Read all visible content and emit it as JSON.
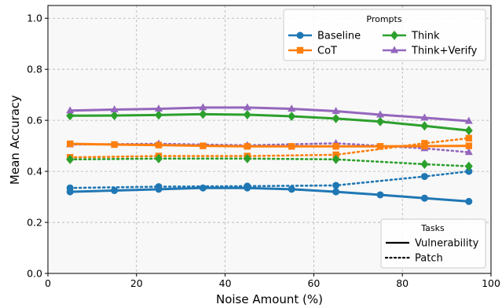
{
  "chart_data": {
    "type": "line",
    "xlabel": "Noise Amount (%)",
    "ylabel": "Mean Accuracy",
    "xlim": [
      0,
      100
    ],
    "ylim": [
      0,
      1.05
    ],
    "xticks": [
      0,
      20,
      40,
      60,
      80,
      100
    ],
    "yticks": [
      0.0,
      0.2,
      0.4,
      0.6,
      0.8,
      1.0
    ],
    "xtick_labels": [
      "0",
      "20",
      "40",
      "60",
      "80",
      "100"
    ],
    "ytick_labels": [
      "0.0",
      "0.2",
      "0.4",
      "0.6",
      "0.8",
      "1.0"
    ],
    "grid": true,
    "x": [
      5,
      15,
      25,
      35,
      45,
      55,
      65,
      75,
      85,
      95
    ],
    "legend_prompts": {
      "title": "Prompts",
      "placement": "top-right",
      "entries": [
        "Baseline",
        "CoT",
        "Think",
        "Think+Verify"
      ]
    },
    "legend_tasks": {
      "title": "Tasks",
      "placement": "bottom-right",
      "entries": [
        "Vulnerability",
        "Patch"
      ]
    },
    "prompts": [
      {
        "name": "Baseline",
        "color": "#1f77b4",
        "marker": "circle"
      },
      {
        "name": "CoT",
        "color": "#ff7f0e",
        "marker": "square"
      },
      {
        "name": "Think",
        "color": "#2ca02c",
        "marker": "diamond"
      },
      {
        "name": "Think+Verify",
        "color": "#9467bd",
        "marker": "triangle"
      }
    ],
    "series": [
      {
        "name": "Baseline",
        "task": "Vulnerability",
        "values": [
          0.32,
          0.325,
          0.33,
          0.335,
          0.335,
          0.33,
          0.32,
          0.308,
          0.295,
          0.282
        ]
      },
      {
        "name": "CoT",
        "task": "Vulnerability",
        "values": [
          0.508,
          0.505,
          0.503,
          0.5,
          0.498,
          0.498,
          0.498,
          0.498,
          0.499,
          0.5
        ]
      },
      {
        "name": "Think",
        "task": "Vulnerability",
        "values": [
          0.618,
          0.619,
          0.621,
          0.624,
          0.622,
          0.616,
          0.607,
          0.595,
          0.578,
          0.56
        ]
      },
      {
        "name": "Think+Verify",
        "task": "Vulnerability",
        "values": [
          0.638,
          0.642,
          0.645,
          0.65,
          0.65,
          0.645,
          0.636,
          0.622,
          0.61,
          0.597
        ]
      },
      {
        "name": "Baseline",
        "task": "Patch",
        "values": [
          0.335,
          null,
          0.34,
          null,
          0.342,
          null,
          0.345,
          null,
          0.38,
          0.4
        ]
      },
      {
        "name": "CoT",
        "task": "Patch",
        "values": [
          0.455,
          null,
          0.46,
          null,
          0.46,
          null,
          0.465,
          null,
          0.51,
          0.53
        ]
      },
      {
        "name": "Think",
        "task": "Patch",
        "values": [
          0.447,
          null,
          0.45,
          null,
          0.45,
          null,
          0.447,
          null,
          0.428,
          0.42
        ]
      },
      {
        "name": "Think+Verify",
        "task": "Patch",
        "values": [
          0.505,
          null,
          0.508,
          null,
          0.502,
          null,
          0.51,
          null,
          0.49,
          0.475
        ]
      }
    ]
  }
}
